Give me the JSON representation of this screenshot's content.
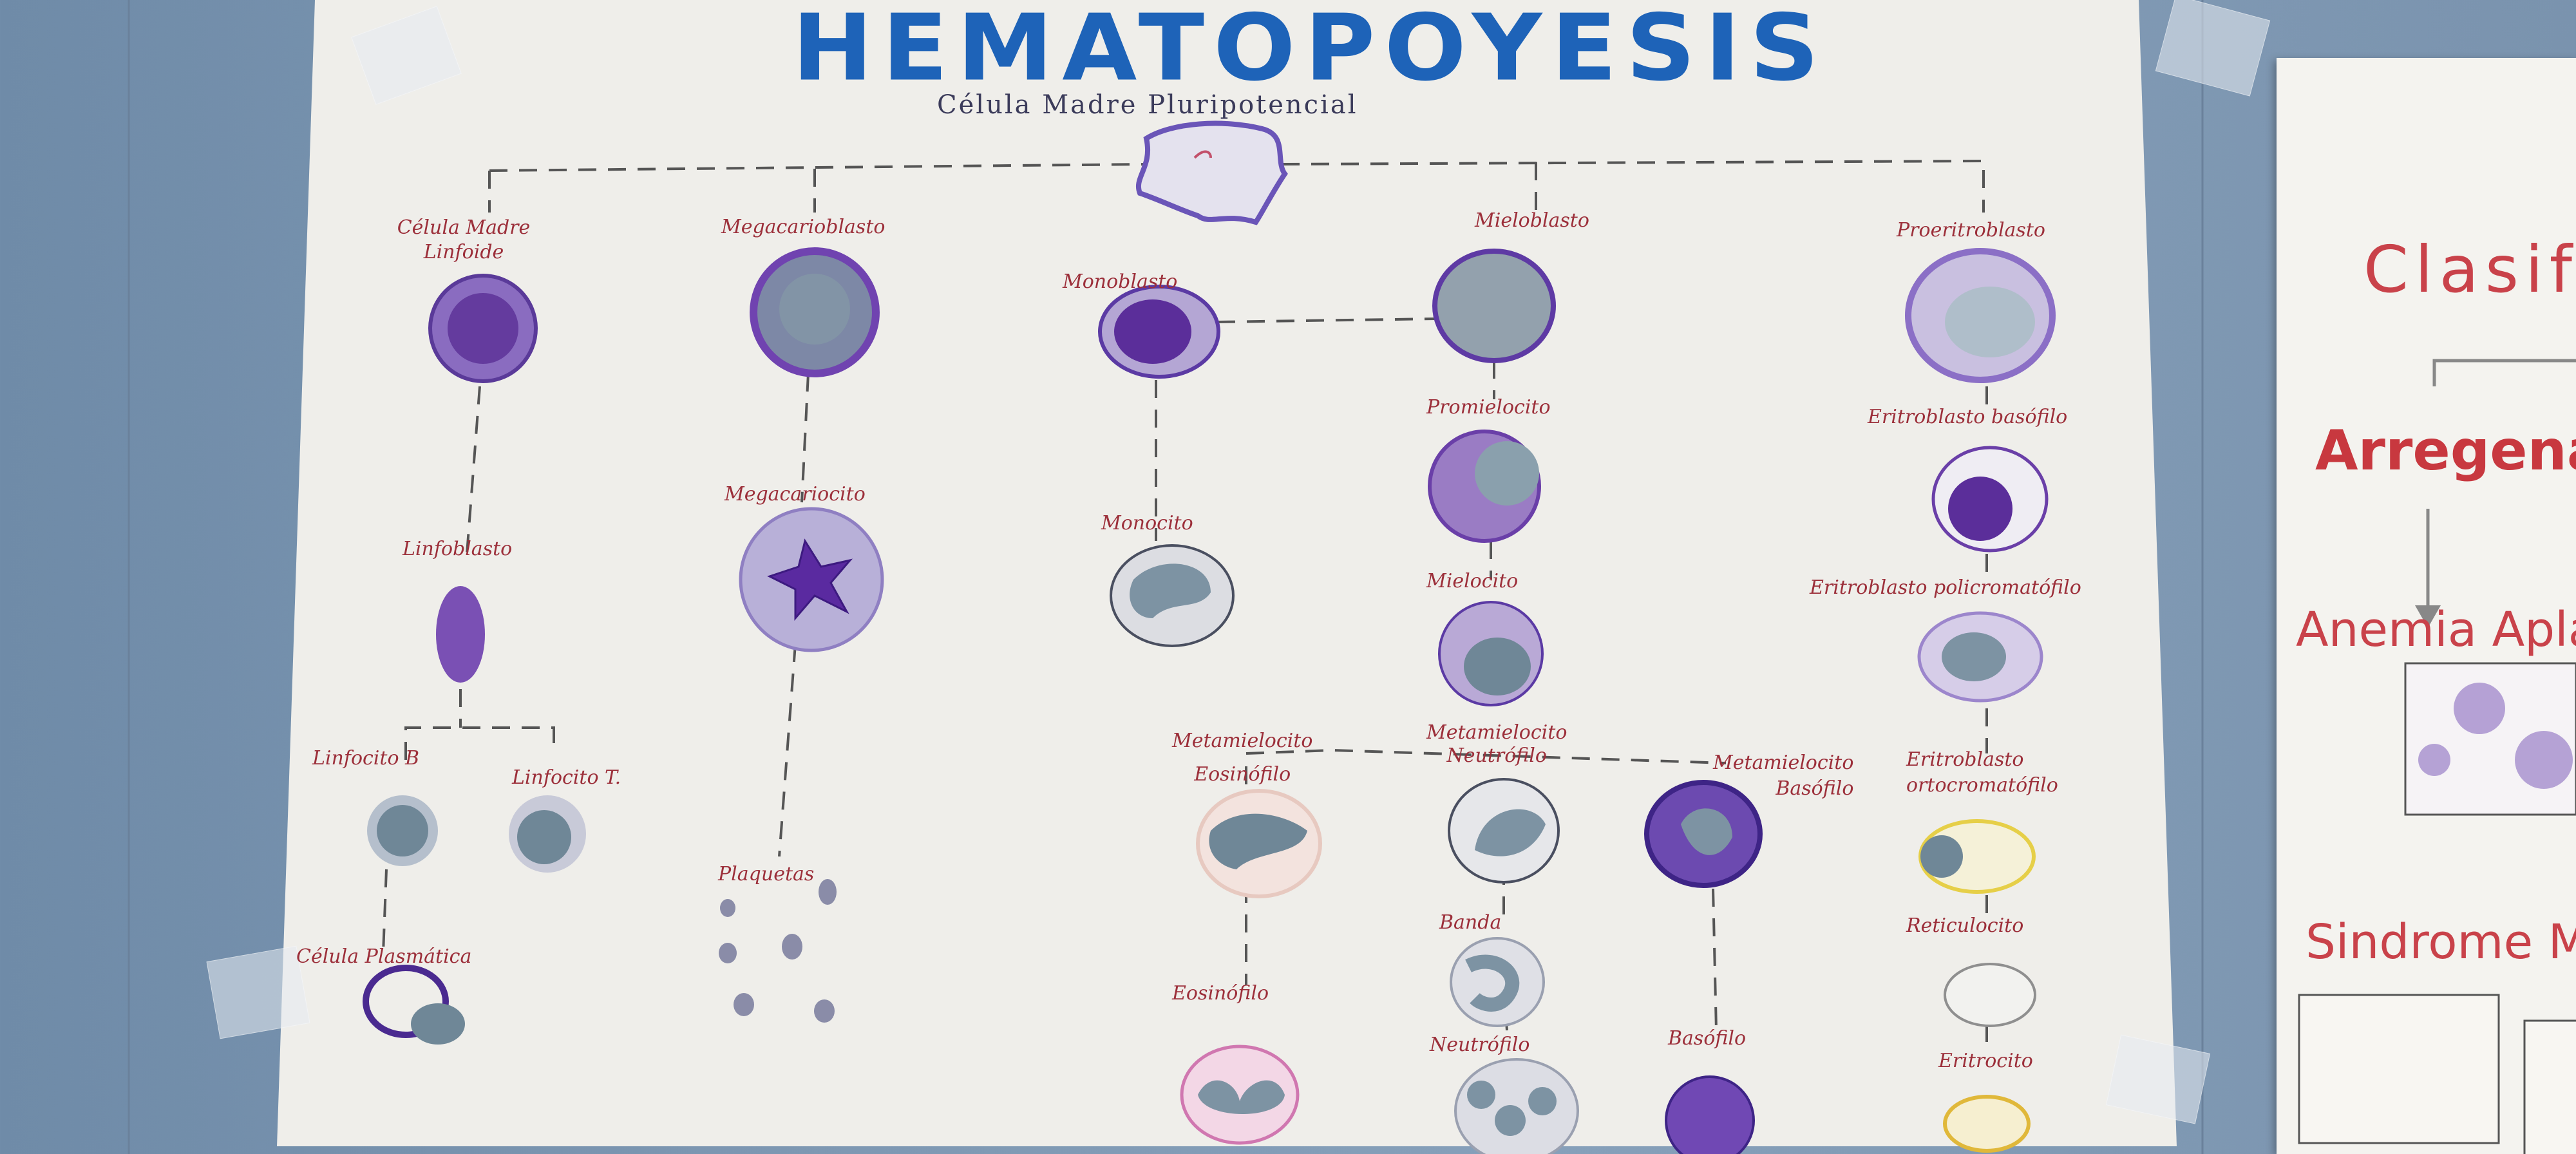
{
  "poster": {
    "title": "HEMATOPOYESIS",
    "subtitle": "Célula Madre Pluripotencial",
    "labels": {
      "celula_madre_linfoide": "Célula Madre Linfoide",
      "linfoblasto": "Linfoblasto",
      "linfocito_b": "Linfocito B",
      "linfocito_t": "Linfocito T.",
      "celula_plasmatica": "Célula Plasmática",
      "megacarioblasto": "Megacarioblasto",
      "megacariocito": "Megacariocito",
      "plaquetas": "Plaquetas",
      "monoblasto": "Monoblasto",
      "monocito": "Monocito",
      "mieloblasto": "Mieloblasto",
      "promielocito": "Promielocito",
      "mielocito": "Mielocito",
      "metamielocito_eosinofilo_1": "Metamielocito",
      "metamielocito_eosinofilo_2": "Eosinófilo",
      "metamielocito_neutrofilo_1": "Metamielocito",
      "metamielocito_neutrofilo_2": "Neutrófilo",
      "metamielocito_basofilo_1": "Metamielocito",
      "metamielocito_basofilo_2": "Basófilo",
      "eosinofilo": "Eosinófilo",
      "banda": "Banda",
      "neutrofilo": "Neutrófilo",
      "basofilo": "Basófilo",
      "proeritroblasto": "Proeritroblasto",
      "eritroblasto_basofilo": "Eritroblasto basófilo",
      "eritroblasto_policromatofilo": "Eritroblasto policromatófilo",
      "eritroblasto_ortocromatofilo_1": "Eritroblasto",
      "eritroblasto_ortocromatofilo_2": "ortocromatófilo",
      "reticulocito": "Reticulocito",
      "eritrocito": "Eritrocito"
    }
  },
  "side_poster": {
    "heading": "Clasif",
    "item_1": "Arregenati",
    "item_2": "Anemia Aplá",
    "item_3": "Sindrome M"
  },
  "colors": {
    "title": "#1e63b8",
    "label": "#9c2f3a",
    "purple": "#6a3fa8",
    "gray_cell": "#7d93a3",
    "wall": "#7a93ae"
  }
}
